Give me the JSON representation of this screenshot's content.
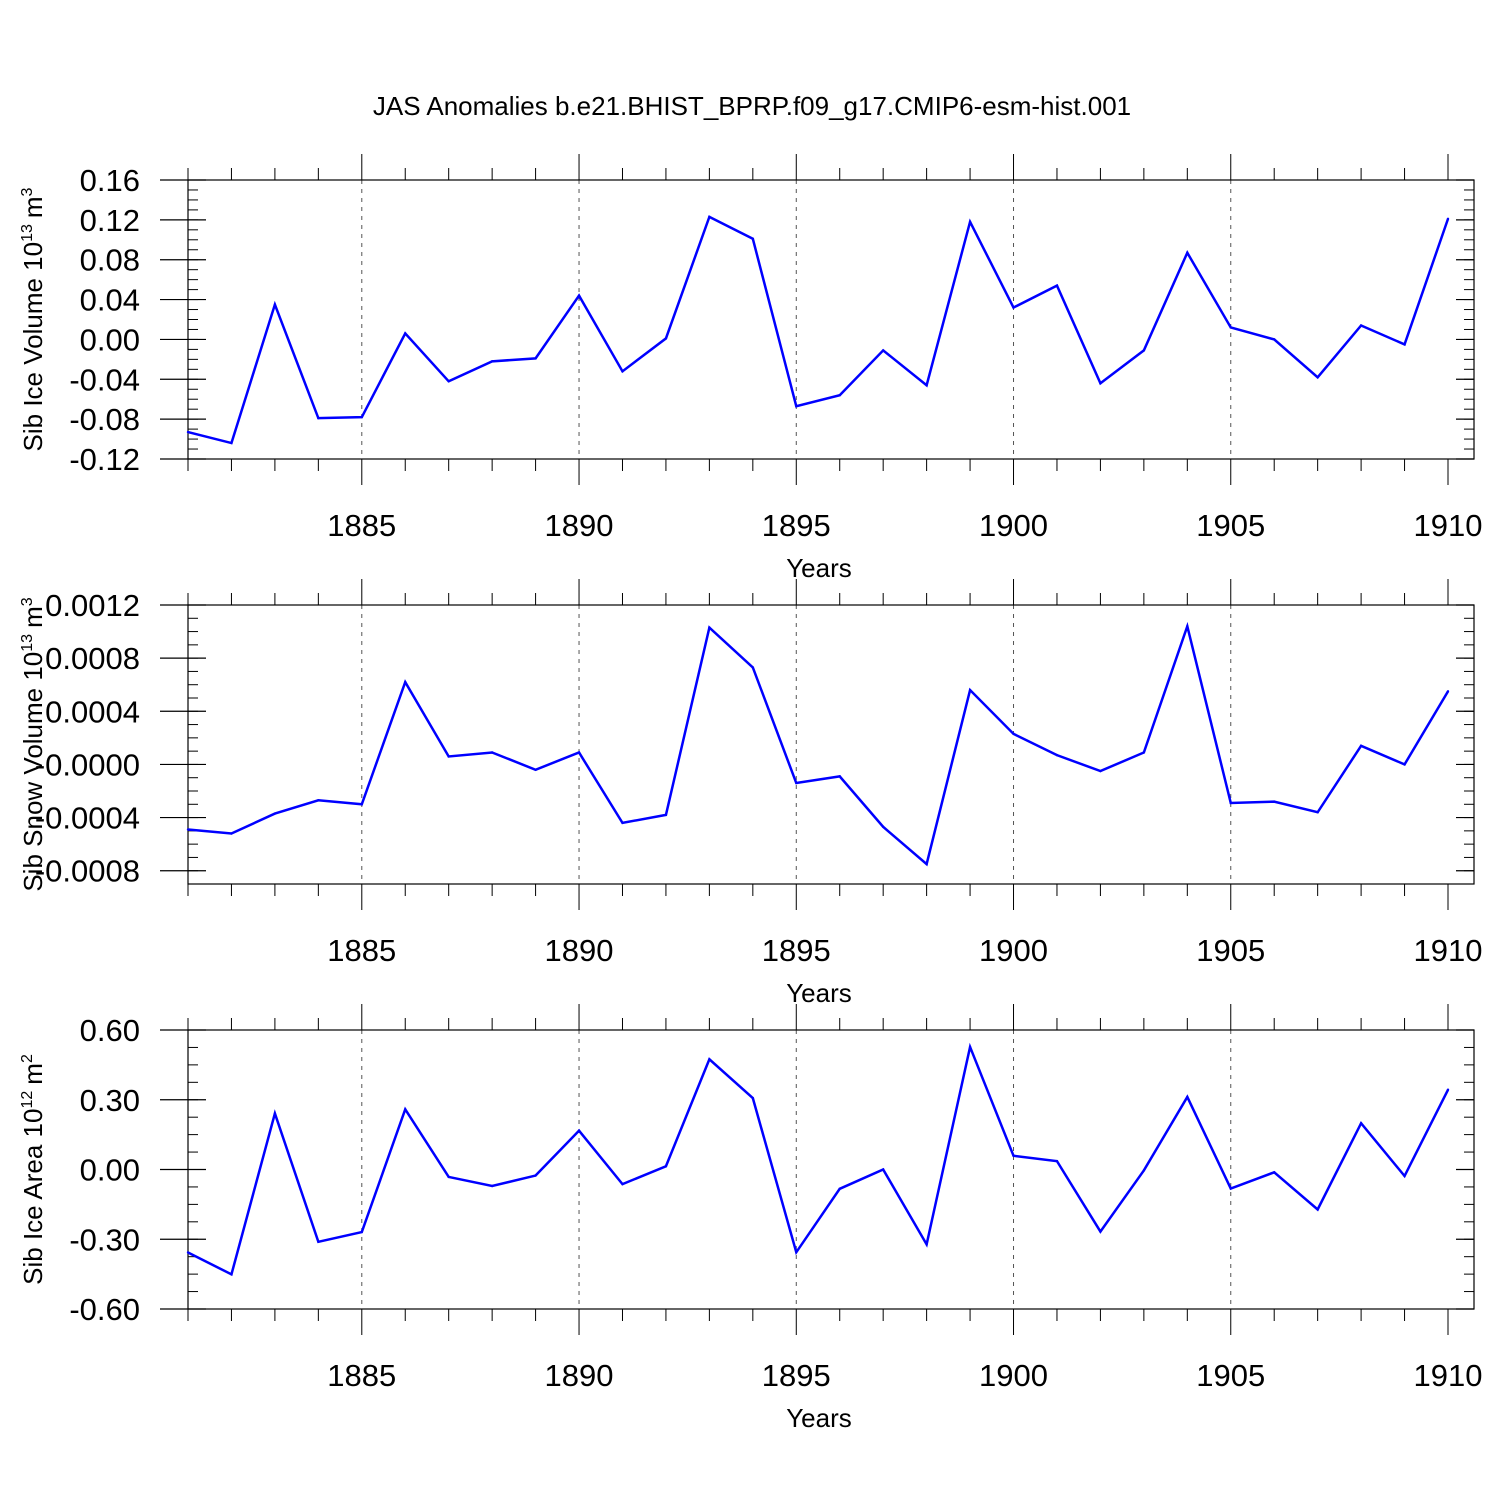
{
  "title": "JAS Anomalies b.e21.BHIST_BPRP.f09_g17.CMIP6-esm-hist.001",
  "line_color": "#0000ff",
  "chart_data": [
    {
      "type": "line",
      "ylabel_main": "Sib Ice Volume 10",
      "ylabel_exp": "13",
      "ylabel_unit": "m",
      "ylabel_unit_exp": "3",
      "xlabel": "Years",
      "ylim": [
        -0.12,
        0.16
      ],
      "xlim": [
        1881,
        1910
      ],
      "yticks": [
        -0.12,
        -0.08,
        -0.04,
        0.0,
        0.04,
        0.08,
        0.12,
        0.16
      ],
      "ytick_labels": [
        "-0.12",
        "-0.08",
        "-0.04",
        "0.00",
        "0.04",
        "0.08",
        "0.12",
        "0.16"
      ],
      "xticks": [
        1885,
        1890,
        1895,
        1900,
        1905,
        1910
      ],
      "xtick_labels": [
        "1885",
        "1890",
        "1895",
        "1900",
        "1905",
        "1910"
      ],
      "x": [
        1881,
        1882,
        1883,
        1884,
        1885,
        1886,
        1887,
        1888,
        1889,
        1890,
        1891,
        1892,
        1893,
        1894,
        1895,
        1896,
        1897,
        1898,
        1899,
        1900,
        1901,
        1902,
        1903,
        1904,
        1905,
        1906,
        1907,
        1908,
        1909,
        1910
      ],
      "series": [
        {
          "name": "Sib Ice Volume",
          "values": [
            -0.093,
            -0.104,
            0.035,
            -0.079,
            -0.078,
            0.006,
            -0.042,
            -0.022,
            -0.019,
            0.044,
            -0.032,
            0.001,
            0.123,
            0.101,
            -0.067,
            -0.056,
            -0.011,
            -0.046,
            0.118,
            0.032,
            0.054,
            -0.044,
            -0.011,
            0.087,
            0.012,
            0.0,
            -0.038,
            0.014,
            -0.005,
            0.121
          ]
        }
      ]
    },
    {
      "type": "line",
      "ylabel_main": "Sib Snow Volume 10",
      "ylabel_exp": "13",
      "ylabel_unit": "m",
      "ylabel_unit_exp": "3",
      "xlabel": "Years",
      "ylim": [
        -0.0009,
        0.0012
      ],
      "xlim": [
        1881,
        1910
      ],
      "yticks": [
        -0.0008,
        -0.0004,
        0.0,
        0.0004,
        0.0008,
        0.0012
      ],
      "ytick_labels": [
        "-0.0008",
        "-0.0004",
        "-0.0000",
        "0.0004",
        "0.0008",
        "0.0012"
      ],
      "xticks": [
        1885,
        1890,
        1895,
        1900,
        1905,
        1910
      ],
      "xtick_labels": [
        "1885",
        "1890",
        "1895",
        "1900",
        "1905",
        "1910"
      ],
      "x": [
        1881,
        1882,
        1883,
        1884,
        1885,
        1886,
        1887,
        1888,
        1889,
        1890,
        1891,
        1892,
        1893,
        1894,
        1895,
        1896,
        1897,
        1898,
        1899,
        1900,
        1901,
        1902,
        1903,
        1904,
        1905,
        1906,
        1907,
        1908,
        1909,
        1910
      ],
      "series": [
        {
          "name": "Sib Snow Volume",
          "values": [
            -0.00049,
            -0.00052,
            -0.00037,
            -0.00027,
            -0.0003,
            0.00062,
            6e-05,
            9e-05,
            -4e-05,
            9e-05,
            -0.00044,
            -0.00038,
            0.00103,
            0.00073,
            -0.00014,
            -9e-05,
            -0.00047,
            -0.00075,
            0.00056,
            0.00023,
            7e-05,
            -5e-05,
            9e-05,
            0.00104,
            -0.00029,
            -0.00028,
            -0.00036,
            0.00014,
            0.0,
            0.00055
          ]
        }
      ]
    },
    {
      "type": "line",
      "ylabel_main": "Sib Ice Area 10",
      "ylabel_exp": "12",
      "ylabel_unit": "m",
      "ylabel_unit_exp": "2",
      "xlabel": "Years",
      "ylim": [
        -0.6,
        0.6
      ],
      "xlim": [
        1881,
        1910
      ],
      "yticks": [
        -0.6,
        -0.3,
        0.0,
        0.3,
        0.6
      ],
      "ytick_labels": [
        "-0.60",
        "-0.30",
        "0.00",
        "0.30",
        "0.60"
      ],
      "xticks": [
        1885,
        1890,
        1895,
        1900,
        1905,
        1910
      ],
      "xtick_labels": [
        "1885",
        "1890",
        "1895",
        "1900",
        "1905",
        "1910"
      ],
      "x": [
        1881,
        1882,
        1883,
        1884,
        1885,
        1886,
        1887,
        1888,
        1889,
        1890,
        1891,
        1892,
        1893,
        1894,
        1895,
        1896,
        1897,
        1898,
        1899,
        1900,
        1901,
        1902,
        1903,
        1904,
        1905,
        1906,
        1907,
        1908,
        1909,
        1910
      ],
      "series": [
        {
          "name": "Sib Ice Area",
          "values": [
            -0.357,
            -0.451,
            0.241,
            -0.311,
            -0.269,
            0.259,
            -0.032,
            -0.071,
            -0.026,
            0.167,
            -0.063,
            0.014,
            0.474,
            0.307,
            -0.356,
            -0.083,
            0.0,
            -0.322,
            0.527,
            0.059,
            0.036,
            -0.267,
            -0.004,
            0.312,
            -0.082,
            -0.012,
            -0.172,
            0.199,
            -0.028,
            0.343
          ]
        }
      ]
    }
  ]
}
